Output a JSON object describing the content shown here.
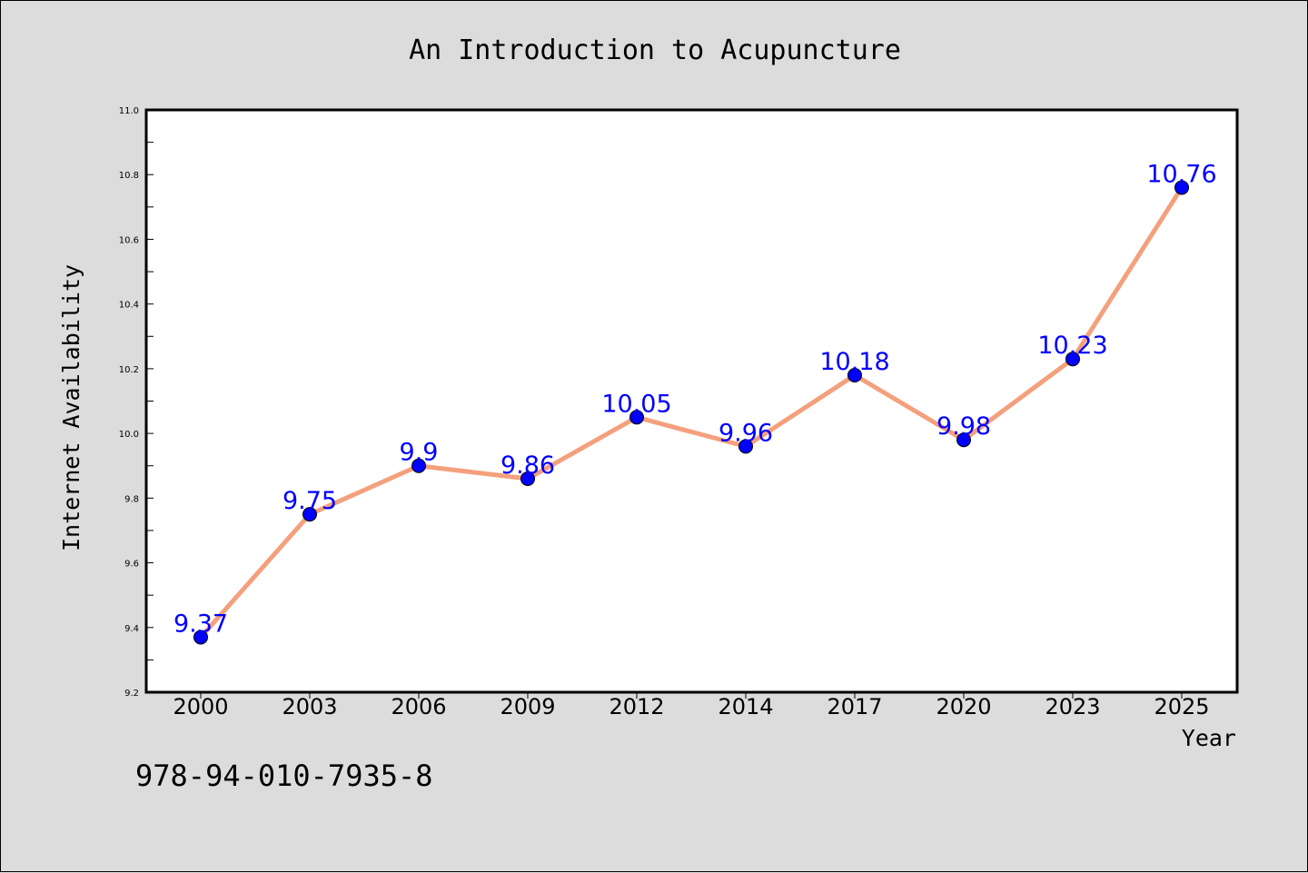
{
  "colors": {
    "line": "#f4a07d",
    "marker": "#0000ff",
    "data_label": "#0000ff",
    "plot_bg": "#ffffff",
    "page_bg": "#dcdcdc"
  },
  "footnote": "978-94-010-7935-8",
  "chart_data": {
    "type": "line",
    "title": "An Introduction to Acupuncture",
    "xlabel": "Year",
    "ylabel": "Internet Availability",
    "categories": [
      "2000",
      "2003",
      "2006",
      "2009",
      "2012",
      "2014",
      "2017",
      "2020",
      "2023",
      "2025"
    ],
    "series": [
      {
        "values": [
          9.37,
          9.75,
          9.9,
          9.86,
          10.05,
          9.96,
          10.18,
          9.98,
          10.23,
          10.76
        ],
        "labels": [
          "9.37",
          "9.75",
          "9.9",
          "9.86",
          "10.05",
          "9.96",
          "10.18",
          "9.98",
          "10.23",
          "10.76"
        ]
      }
    ],
    "ylim": [
      9.2,
      11.0
    ],
    "yticks": [
      "9.2",
      "9.4",
      "9.6",
      "9.8",
      "10.0",
      "10.2",
      "10.4",
      "10.6",
      "10.8",
      "11.0"
    ],
    "grid": false,
    "legend": "none"
  }
}
